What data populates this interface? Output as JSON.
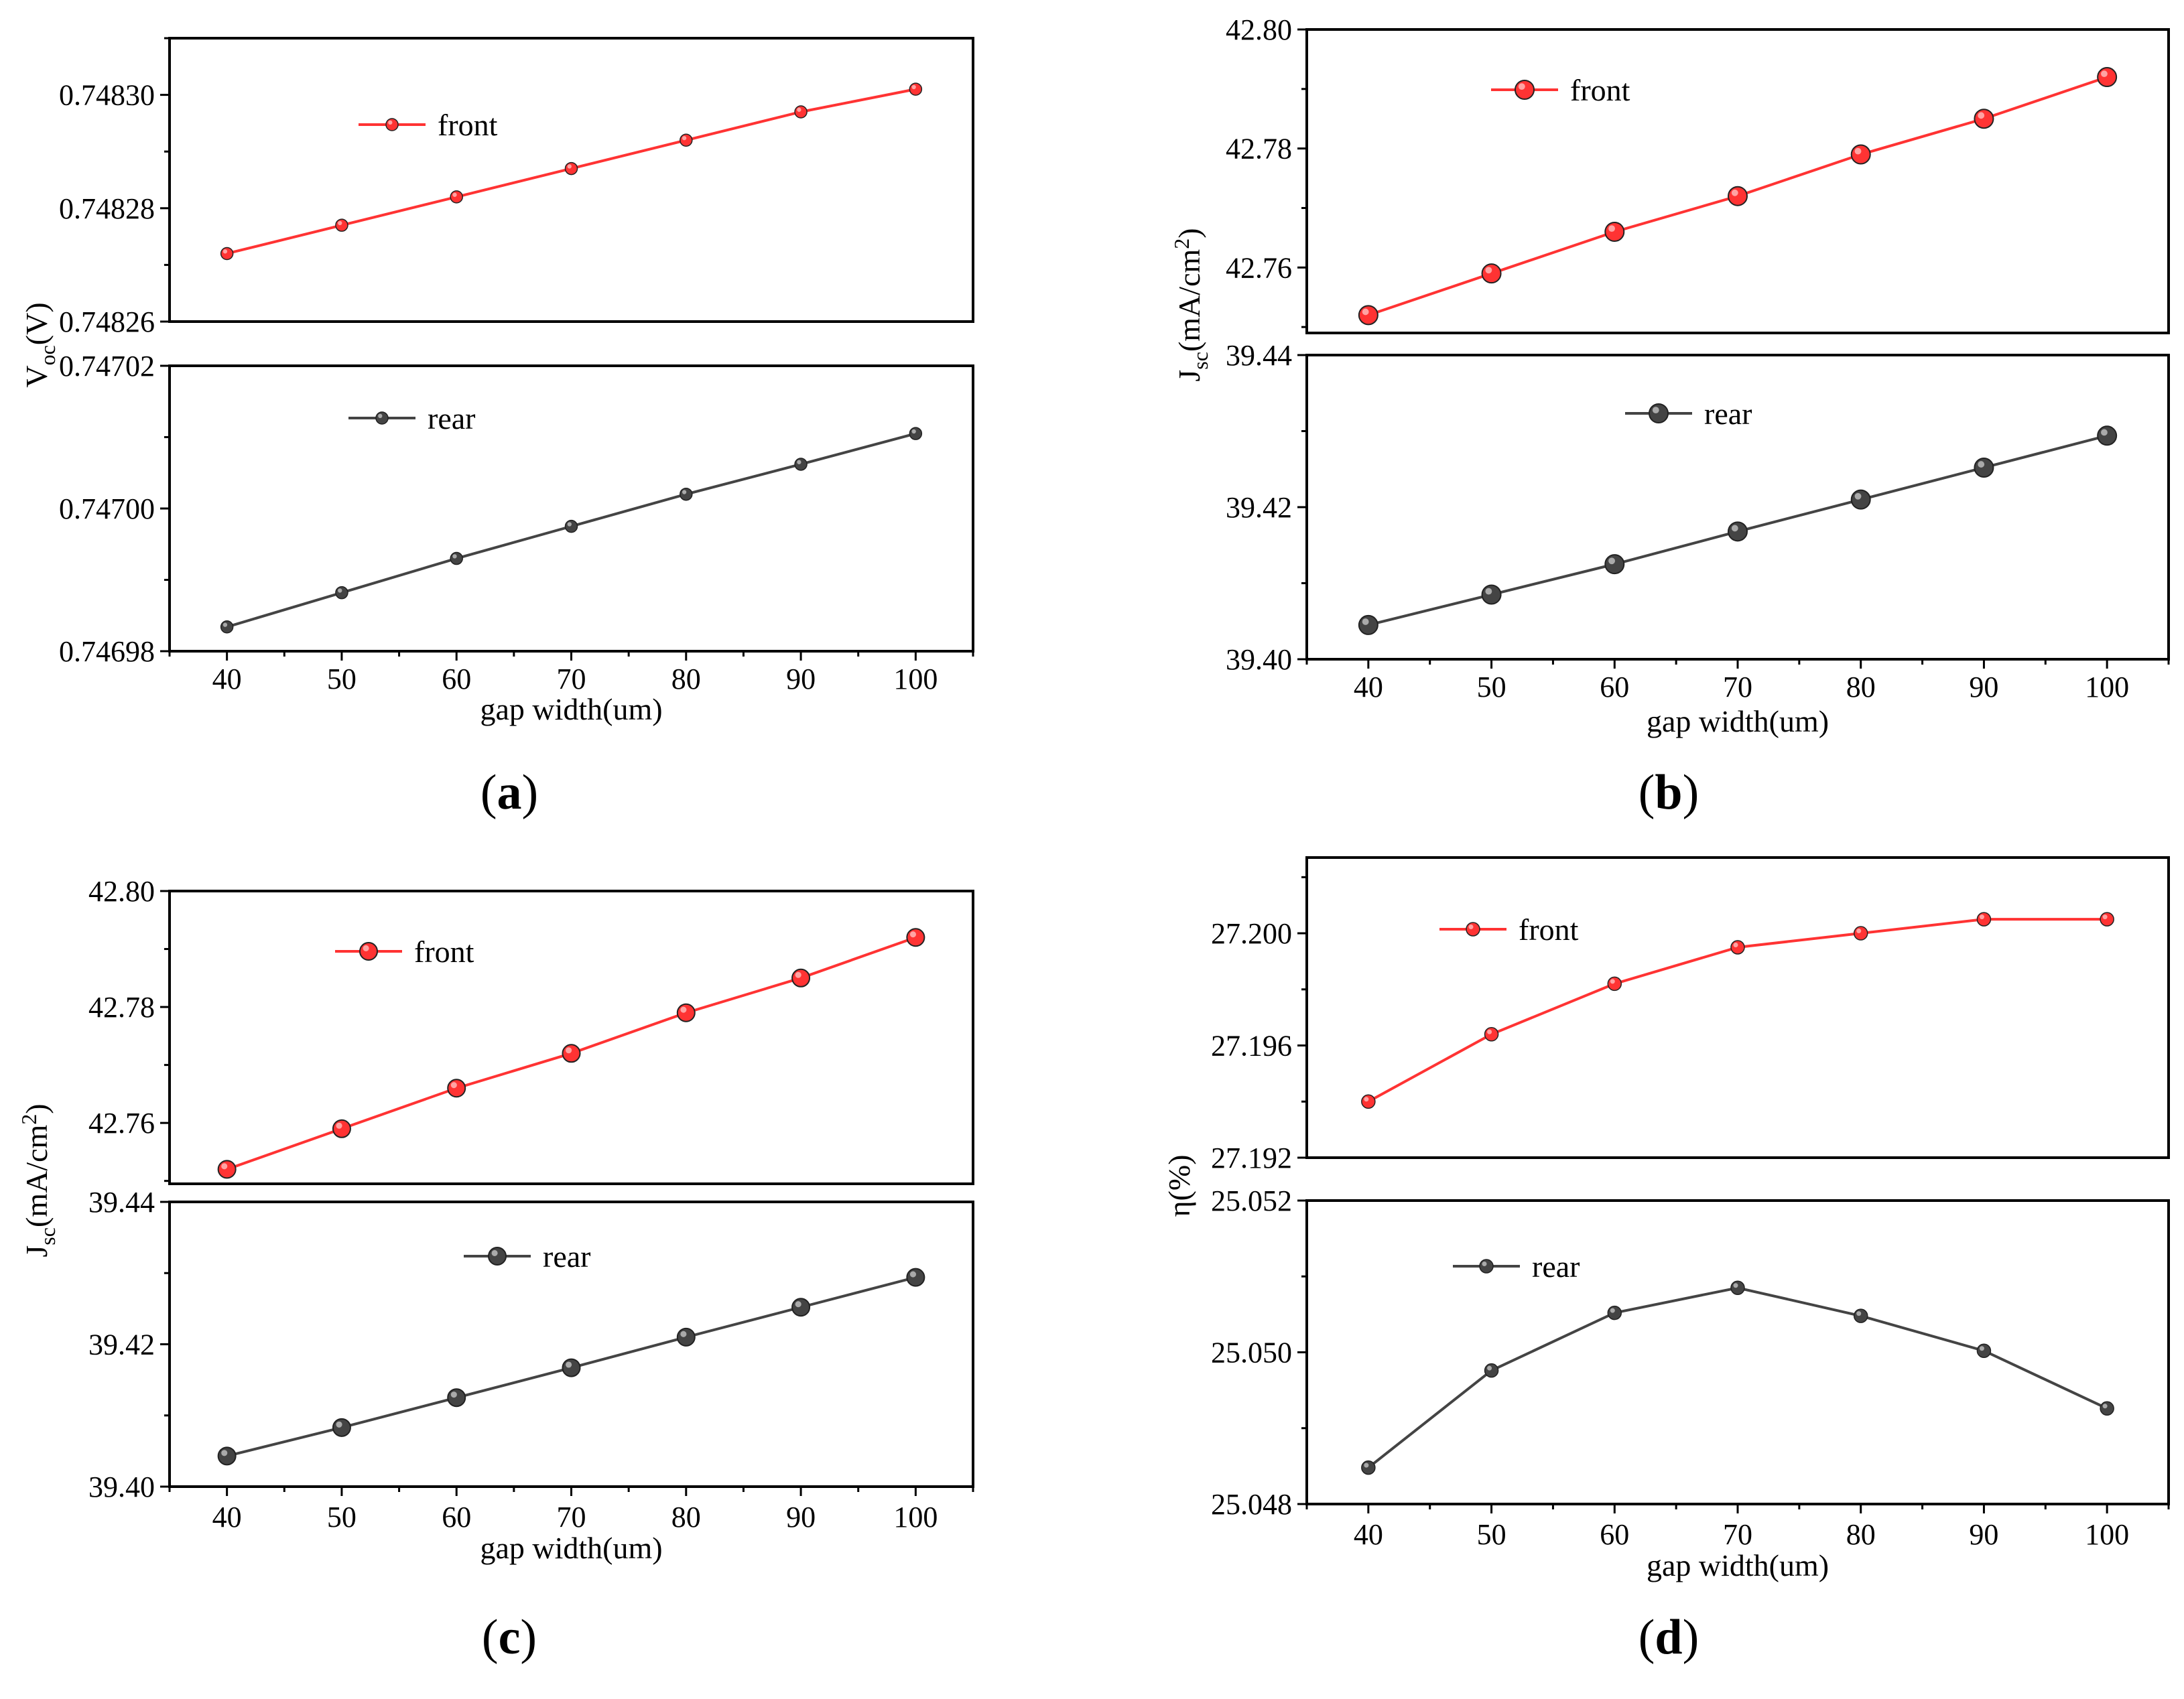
{
  "chart_data": [
    {
      "type": "line",
      "panel_label": "(a)",
      "panel_letter": "a",
      "title": "",
      "xlabel": "gap width(um)",
      "ylabel": "V_oc(V)",
      "ylabel_main": "V",
      "ylabel_sub": "oc",
      "ylabel_rest": "(V)",
      "x": [
        40,
        50,
        60,
        70,
        80,
        90,
        100
      ],
      "x_ticks": [
        "40",
        "50",
        "60",
        "70",
        "80",
        "90",
        "100"
      ],
      "xlim": [
        35,
        105
      ],
      "grid": false,
      "subplots": [
        {
          "series": {
            "name": "front",
            "color": "#ff3333",
            "values": [
              0.748272,
              0.748277,
              0.748282,
              0.748287,
              0.748292,
              0.748297,
              0.748301
            ]
          },
          "ylim": [
            0.74826,
            0.74831
          ],
          "yticks": [
            0.74826,
            0.74828,
            0.7483
          ],
          "ytick_labels": [
            "0.74826",
            "0.74828",
            "0.74830"
          ],
          "legend_position": "top-left"
        },
        {
          "series": {
            "name": "rear",
            "color": "#444444",
            "values": [
              0.7469834,
              0.7469882,
              0.746993,
              0.7469975,
              0.747002,
              0.7470062,
              0.7470105
            ]
          },
          "ylim": [
            0.74698,
            0.74702
          ],
          "yticks": [
            0.74698,
            0.747,
            0.74702
          ],
          "ytick_labels": [
            "0.74698",
            "0.74700",
            "0.74702"
          ],
          "legend_position": "top-left"
        }
      ]
    },
    {
      "type": "line",
      "panel_label": "(b)",
      "panel_letter": "b",
      "title": "",
      "xlabel": "gap width(um)",
      "ylabel": "J_sc(mA/cm^2)",
      "ylabel_main": "J",
      "ylabel_sub": "sc",
      "ylabel_rest": "(mA/cm",
      "ylabel_sup": "2",
      "ylabel_close": ")",
      "x": [
        40,
        50,
        60,
        70,
        80,
        90,
        100
      ],
      "x_ticks": [
        "40",
        "50",
        "60",
        "70",
        "80",
        "90",
        "100"
      ],
      "xlim": [
        35,
        105
      ],
      "grid": false,
      "subplots": [
        {
          "series": {
            "name": "front",
            "color": "#ff3333",
            "values": [
              42.752,
              42.759,
              42.766,
              42.772,
              42.779,
              42.785,
              42.792
            ]
          },
          "ylim": [
            42.749,
            42.8
          ],
          "yticks": [
            42.76,
            42.78,
            42.8
          ],
          "ytick_labels": [
            "42.76",
            "42.78",
            "42.80"
          ],
          "legend_position": "top-left"
        },
        {
          "series": {
            "name": "rear",
            "color": "#444444",
            "values": [
              39.4045,
              39.4085,
              39.4125,
              39.4168,
              39.421,
              39.4252,
              39.4294
            ]
          },
          "ylim": [
            39.4,
            39.44
          ],
          "yticks": [
            39.4,
            39.42,
            39.44
          ],
          "ytick_labels": [
            "39.40",
            "39.42",
            "39.44"
          ],
          "legend_position": "top-left"
        }
      ]
    },
    {
      "type": "line",
      "panel_label": "(c)",
      "panel_letter": "c",
      "title": "",
      "xlabel": "gap width(um)",
      "ylabel": "J_sc(mA/cm^2)",
      "ylabel_main": "J",
      "ylabel_sub": "sc",
      "ylabel_rest": "(mA/cm",
      "ylabel_sup": "2",
      "ylabel_close": ")",
      "x": [
        40,
        50,
        60,
        70,
        80,
        90,
        100
      ],
      "x_ticks": [
        "40",
        "50",
        "60",
        "70",
        "80",
        "90",
        "100"
      ],
      "xlim": [
        35,
        105
      ],
      "grid": false,
      "subplots": [
        {
          "series": {
            "name": "front",
            "color": "#ff3333",
            "values": [
              42.752,
              42.759,
              42.766,
              42.772,
              42.779,
              42.785,
              42.792
            ]
          },
          "ylim": [
            42.7495,
            42.8
          ],
          "yticks": [
            42.76,
            42.78,
            42.8
          ],
          "ytick_labels": [
            "42.76",
            "42.78",
            "42.80"
          ],
          "legend_position": "top-left"
        },
        {
          "series": {
            "name": "rear",
            "color": "#444444",
            "values": [
              39.4043,
              39.4083,
              39.4125,
              39.4167,
              39.421,
              39.4252,
              39.4294
            ]
          },
          "ylim": [
            39.4,
            39.44
          ],
          "yticks": [
            39.4,
            39.42,
            39.44
          ],
          "ytick_labels": [
            "39.40",
            "39.42",
            "39.44"
          ],
          "legend_position": "top-left"
        }
      ]
    },
    {
      "type": "line",
      "panel_label": "(d)",
      "panel_letter": "d",
      "title": "",
      "xlabel": "gap width(um)",
      "ylabel": "η(%)",
      "ylabel_main": "η(%)",
      "x": [
        40,
        50,
        60,
        70,
        80,
        90,
        100
      ],
      "x_ticks": [
        "40",
        "50",
        "60",
        "70",
        "80",
        "90",
        "100"
      ],
      "xlim": [
        35,
        105
      ],
      "grid": false,
      "subplots": [
        {
          "series": {
            "name": "front",
            "color": "#ff3333",
            "values": [
              27.194,
              27.1964,
              27.1982,
              27.1995,
              27.2,
              27.2005,
              27.2005
            ]
          },
          "ylim": [
            27.192,
            27.2027
          ],
          "yticks": [
            27.192,
            27.196,
            27.2
          ],
          "ytick_labels": [
            "27.192",
            "27.196",
            "27.200"
          ],
          "legend_position": "top-left"
        },
        {
          "series": {
            "name": "rear",
            "color": "#444444",
            "values": [
              25.04848,
              25.04976,
              25.05052,
              25.05085,
              25.05048,
              25.05002,
              25.04926
            ]
          },
          "ylim": [
            25.048,
            25.052
          ],
          "yticks": [
            25.048,
            25.05,
            25.052
          ],
          "ytick_labels": [
            "25.048",
            "25.050",
            "25.052"
          ],
          "legend_position": "top-left"
        }
      ]
    }
  ]
}
